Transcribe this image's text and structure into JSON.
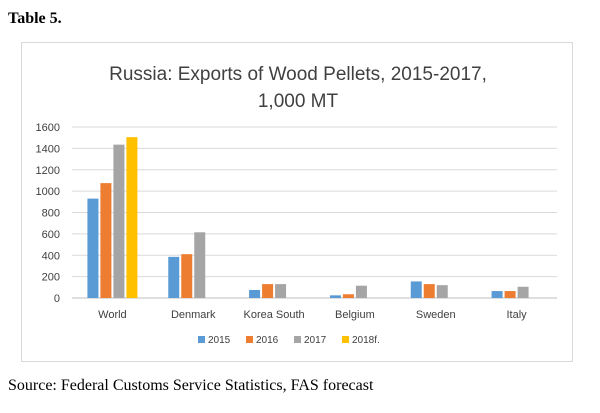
{
  "table_label": "Table 5.",
  "source_note": "Source: Federal Customs Service Statistics, FAS forecast",
  "chart_data": {
    "type": "bar",
    "title_lines": [
      "Russia: Exports of Wood Pellets, 2015-2017,",
      "1,000 MT"
    ],
    "categories": [
      "World",
      "Denmark",
      "Korea South",
      "Belgium",
      "Sweden",
      "Italy"
    ],
    "series": [
      {
        "name": "2015",
        "color": "#5b9bd5",
        "values": [
          930,
          385,
          75,
          25,
          155,
          65
        ]
      },
      {
        "name": "2016",
        "color": "#ed7d31",
        "values": [
          1075,
          410,
          130,
          35,
          130,
          65
        ]
      },
      {
        "name": "2017",
        "color": "#a5a5a5",
        "values": [
          1435,
          615,
          130,
          115,
          120,
          105
        ]
      },
      {
        "name": "2018f.",
        "color": "#ffc000",
        "values": [
          1505,
          null,
          null,
          null,
          null,
          null
        ]
      }
    ],
    "ylim": [
      0,
      1600
    ],
    "yticks": [
      "0",
      "200",
      "400",
      "600",
      "800",
      "1000",
      "1200",
      "1400",
      "1600"
    ],
    "grid": true,
    "legend_position": "bottom"
  }
}
